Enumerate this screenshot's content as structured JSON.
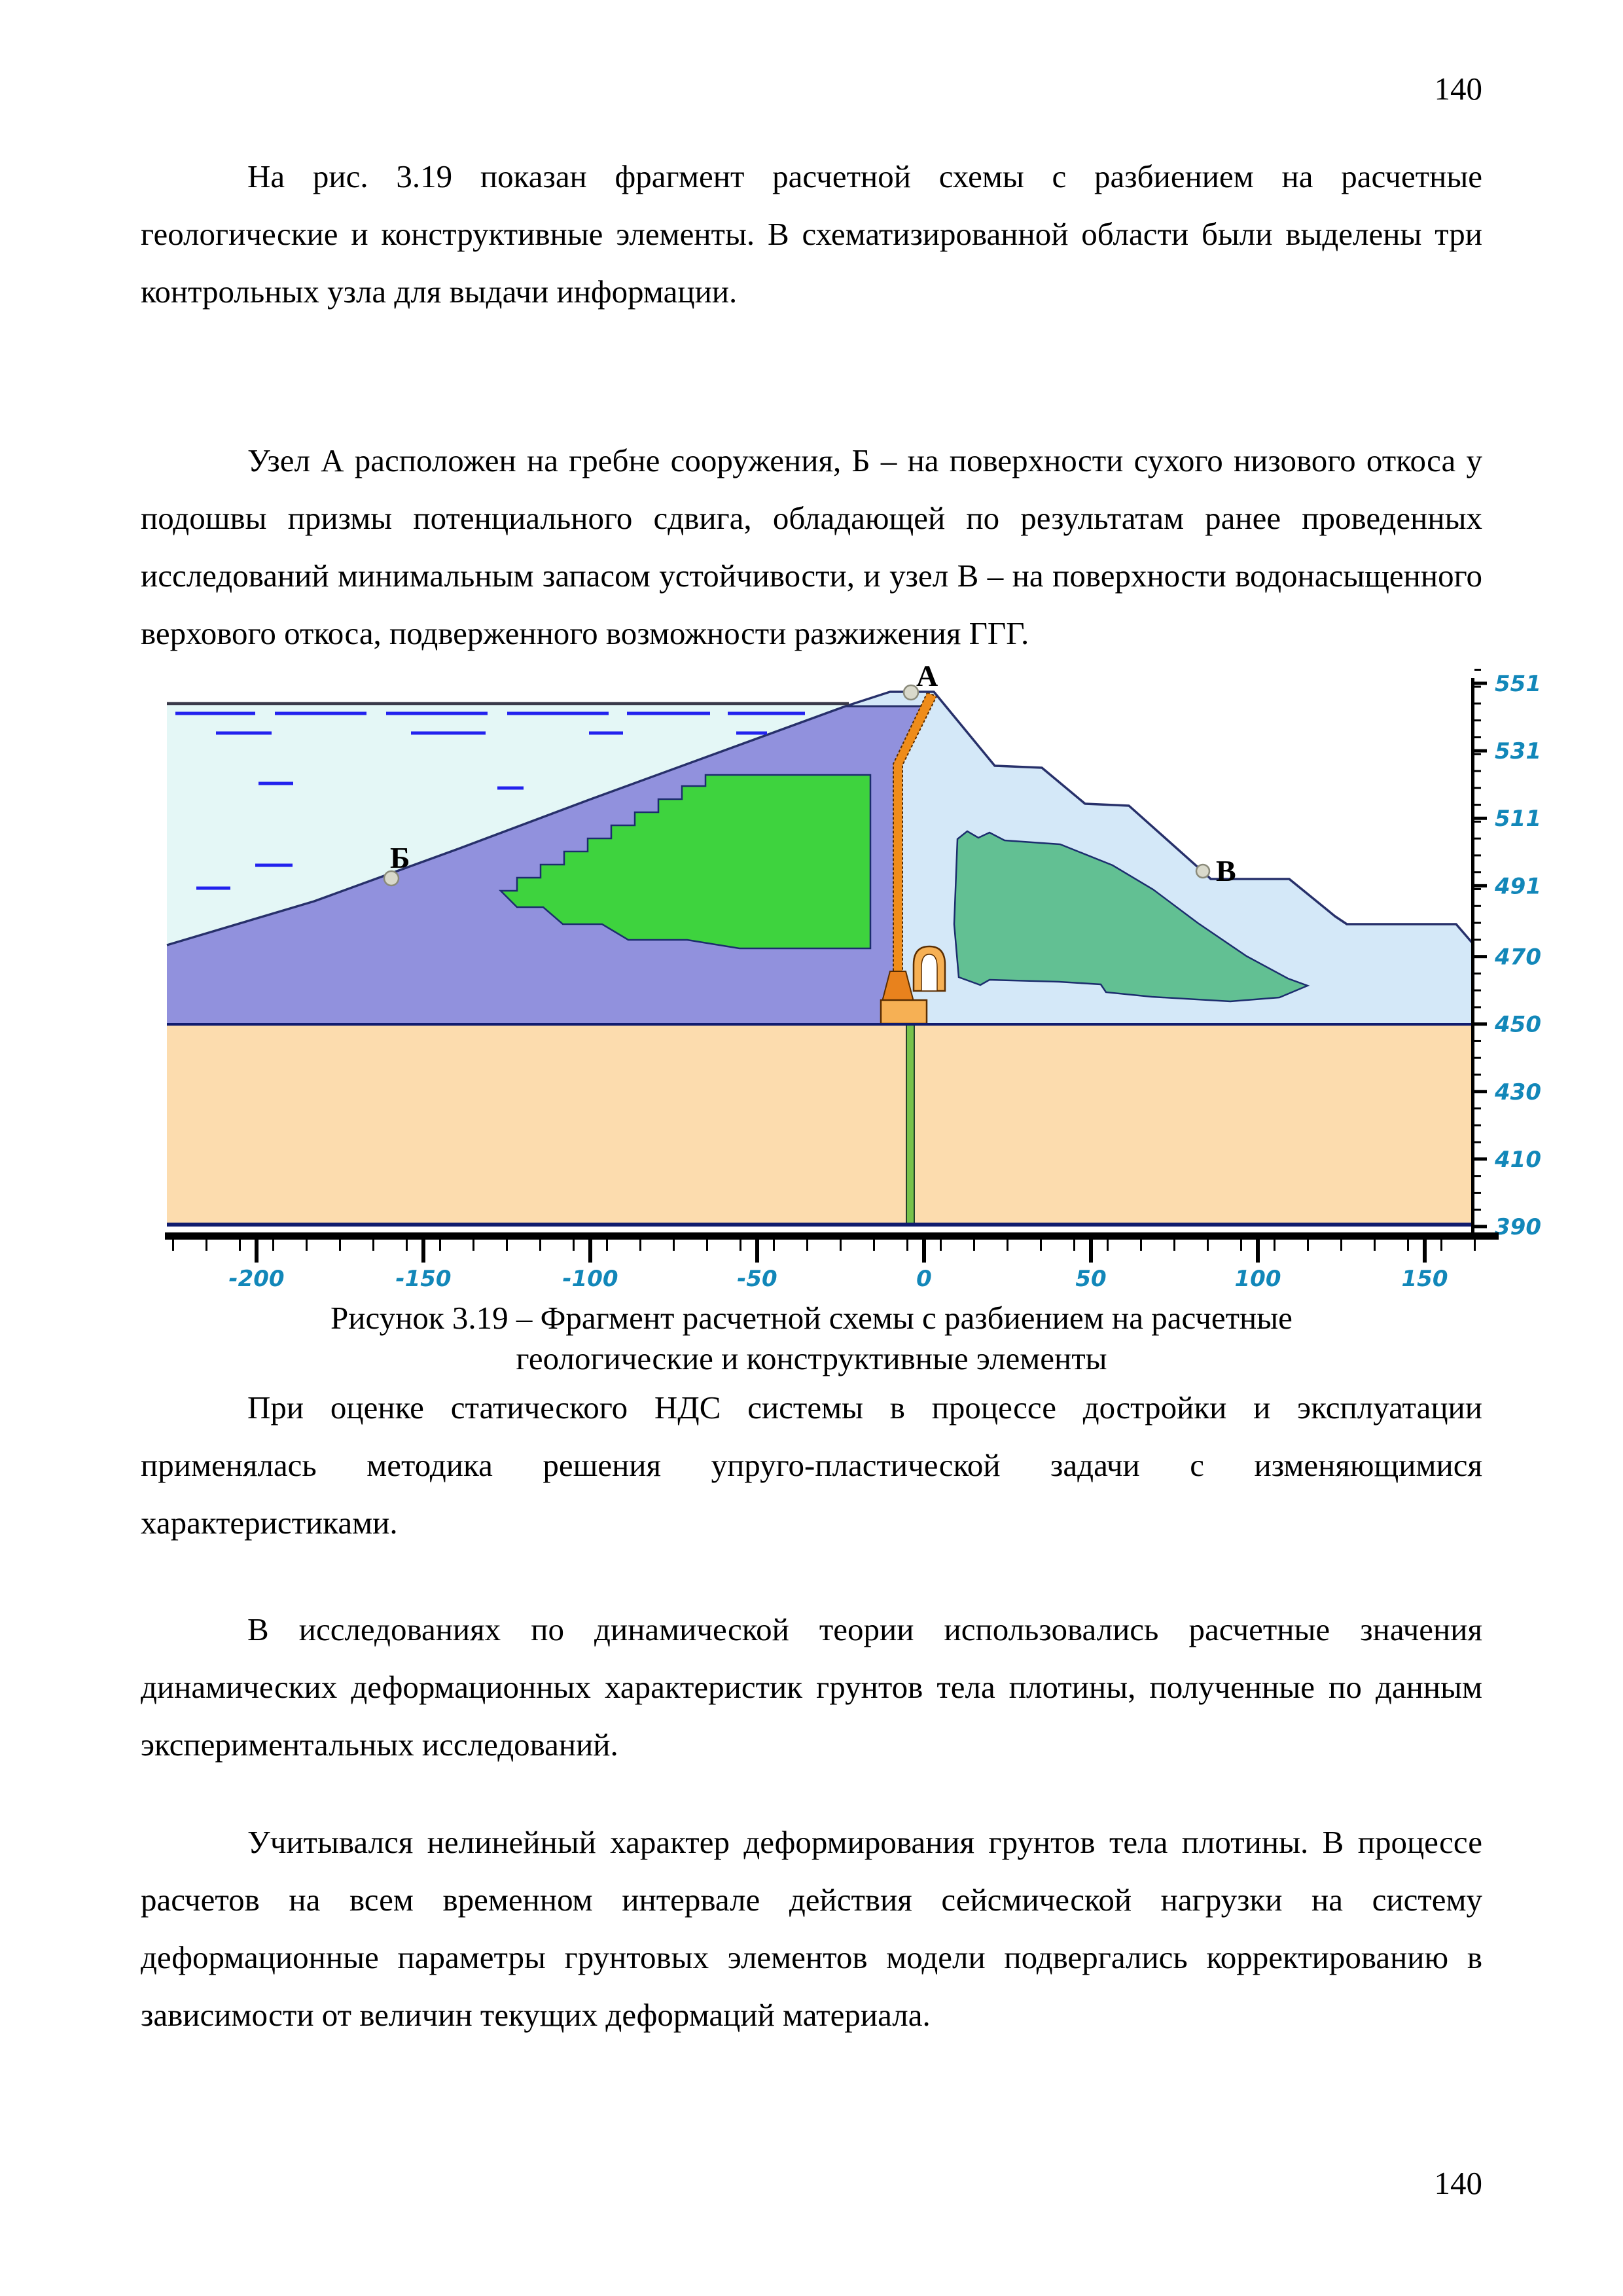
{
  "page": {
    "number_top": "140",
    "number_bottom": "140"
  },
  "paragraphs": {
    "p1": "На рис. 3.19 показан фрагмент расчетной схемы с разбиением на расчетные геологические и конструктивные элементы. В схематизированной области были выделены три контрольных узла для выдачи информации.",
    "p2": "Узел А расположен на гребне сооружения, Б – на поверхности сухого низового откоса у подошвы призмы потенциального сдвига, обладающей по результатам ранее проведенных исследований минимальным запасом устойчивости, и узел В – на поверхности водонасыщенного верхового откоса, подверженного возможности разжижения ГГГ.",
    "p3": "При оценке статического НДС системы в процессе достройки и эксплуатации применялась методика решения упруго-пластической задачи с изменяющимися характеристиками.",
    "p4": "В исследованиях по динамической теории использовались расчетные значения динамических деформационных характеристик грунтов тела плотины, полученные по данным экспериментальных исследований.",
    "p5": "Учитывался нелинейный характер деформирования грунтов тела плотины. В процессе расчетов на всем временном интервале действия сейсмической нагрузки на систему деформационные параметры грунтовых элементов модели подвергались корректированию в зависимости от величин текущих деформаций материала."
  },
  "figure": {
    "caption_line1": "Рисунок 3.19 – Фрагмент расчетной схемы с разбиением на расчетные",
    "caption_line2": "геологические и конструктивные элементы",
    "node_labels": {
      "a": "А",
      "b": "Б",
      "v": "В"
    },
    "y_axis": {
      "ticks": [
        "551",
        "531",
        "511",
        "491",
        "470",
        "450",
        "430",
        "410",
        "390"
      ]
    },
    "x_axis": {
      "ticks": [
        "-200",
        "-150",
        "-100",
        "-50",
        "0",
        "50",
        "100",
        "150"
      ]
    },
    "colors": {
      "water": "#e4f7f6",
      "upstream_shell_purple": "#9191dd",
      "downstream_shell_blue": "#d4e8f8",
      "core_green": "#3ed33e",
      "downstream_zone_seagreen": "#62c093",
      "foundation_tan": "#fcdcae",
      "diaphragm_orange": "#ef8c1a",
      "footing_orange": "#f6b054",
      "grout_curtain_green": "#77c24b",
      "axis_label_teal": "#1287b9",
      "outline_navy": "#1c2d6e",
      "water_dash_blue": "#2222ee"
    }
  }
}
